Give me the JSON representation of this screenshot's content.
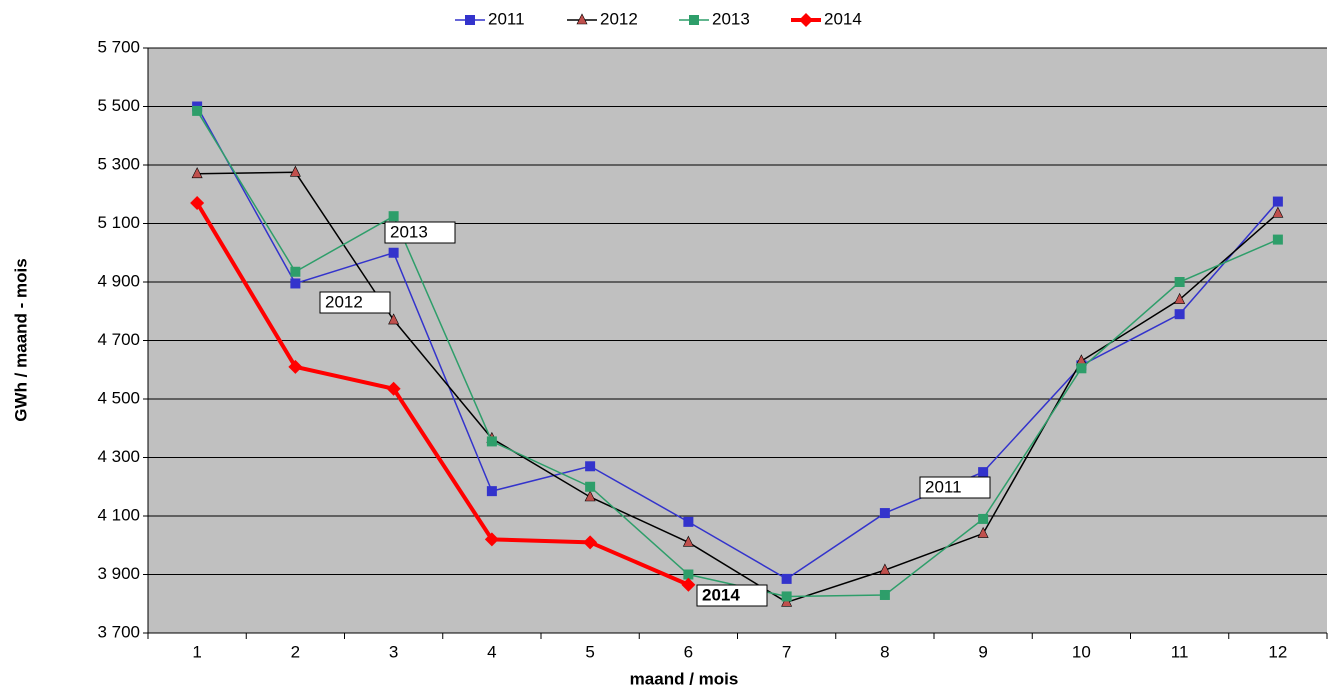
{
  "chart_data": {
    "type": "line",
    "y_label": "GWh / maand - mois",
    "x_label": "maand  /  mois",
    "categories": [
      1,
      2,
      3,
      4,
      5,
      6,
      7,
      8,
      9,
      10,
      11,
      12
    ],
    "series": [
      {
        "name": "2011",
        "color": "#3333cc",
        "marker": "square",
        "values": [
          5500,
          4895,
          5000,
          4185,
          4270,
          4080,
          3885,
          4110,
          4250,
          4615,
          4790,
          5175
        ]
      },
      {
        "name": "2012",
        "color": "#000000",
        "marker": "triangle",
        "values": [
          5270,
          5275,
          4770,
          4365,
          4165,
          4010,
          3805,
          3915,
          4040,
          4630,
          4840,
          5135
        ]
      },
      {
        "name": "2013",
        "color": "#2e9e6a",
        "marker": "square",
        "values": [
          5485,
          4935,
          5125,
          4355,
          4200,
          3900,
          3825,
          3830,
          4090,
          4605,
          4900,
          5045
        ]
      },
      {
        "name": "2014",
        "color": "#ff0000",
        "marker": "diamond",
        "values": [
          5170,
          4610,
          4535,
          4020,
          4010,
          3865,
          null,
          null,
          null,
          null,
          null,
          null
        ]
      }
    ],
    "annotations": [
      "2013",
      "2012",
      "2011",
      "2014"
    ],
    "ylim": [
      3700,
      5700
    ],
    "yticks": [
      {
        "value": 3700,
        "label": "3 700"
      },
      {
        "value": 3900,
        "label": "3 900"
      },
      {
        "value": 4100,
        "label": "4 100"
      },
      {
        "value": 4300,
        "label": "4 300"
      },
      {
        "value": 4500,
        "label": "4 500"
      },
      {
        "value": 4700,
        "label": "4 700"
      },
      {
        "value": 4900,
        "label": "4 900"
      },
      {
        "value": 5100,
        "label": "5 100"
      },
      {
        "value": 5300,
        "label": "5 300"
      },
      {
        "value": 5500,
        "label": "5 500"
      },
      {
        "value": 5700,
        "label": "5 700"
      }
    ],
    "grid": true
  }
}
